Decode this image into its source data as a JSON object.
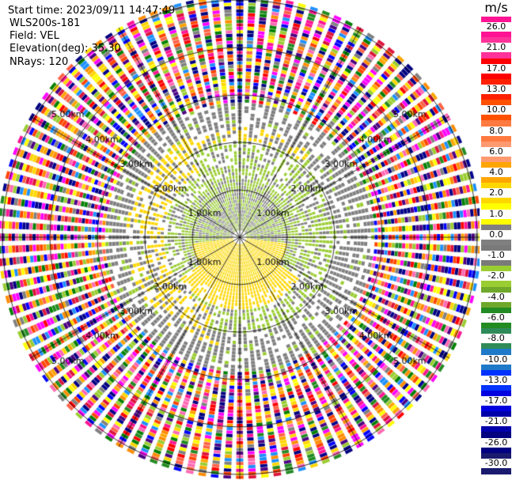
{
  "header": {
    "start_time": "Start time: 2023/09/11 14:47:49",
    "instrument": "WLS200s-181",
    "field": "Field: VEL",
    "elevation": "Elevation(deg): 35.30",
    "nrays": "NRays: 120"
  },
  "colorbar": {
    "unit": "m/s",
    "ticks": [
      "26.0",
      "21.0",
      "17.0",
      "13.0",
      "10.0",
      "8.0",
      "6.0",
      "4.0",
      "2.0",
      "1.0",
      "0.0",
      "-1.0",
      "-2.0",
      "-4.0",
      "-6.0",
      "-8.0",
      "-10.0",
      "-13.0",
      "-17.0",
      "-21.0",
      "-26.0",
      "-30.0"
    ],
    "colors": [
      "#ff1493",
      "#ff3399",
      "#ff0000",
      "#ff2000",
      "#ff5000",
      "#ff7a40",
      "#ff9a70",
      "#ffa500",
      "#ffd700",
      "#ffff00",
      "#808080",
      "#7a7a7a",
      "#9acd32",
      "#6fa82a",
      "#228b22",
      "#2e8b57",
      "#1e7ac8",
      "#0033ff",
      "#0000e0",
      "#0000aa",
      "#000080",
      "#1a1a6e"
    ]
  },
  "chart_data": {
    "type": "heatmap",
    "projection": "PPI polar (plan position indicator)",
    "field": "VEL",
    "nrays": 120,
    "range_rings_km": [
      1.0,
      2.0,
      3.0,
      4.0,
      5.0
    ],
    "ring_labels": [
      "1.00km",
      "2.00km",
      "3.00km",
      "4.00km",
      "5.00km"
    ],
    "azimuth_spokes_deg": [
      0,
      30,
      60,
      90,
      120,
      150,
      180,
      210,
      240,
      270,
      300,
      330
    ],
    "value_range_mps": [
      -30.0,
      30.0
    ],
    "description_regions": [
      {
        "range_km": [
          0,
          1.0
        ],
        "pattern": "yellow (+2 m/s) south of center, grey/green north"
      },
      {
        "range_km": [
          1.0,
          2.0
        ],
        "pattern": "green (-1 to -2 m/s) ring, yellow arc to south and west"
      },
      {
        "range_km": [
          2.0,
          2.8
        ],
        "pattern": "grey (~0 m/s) sparse"
      },
      {
        "range_km": [
          2.8,
          5.5
        ],
        "pattern": "noise: random colors across full scale"
      }
    ]
  }
}
